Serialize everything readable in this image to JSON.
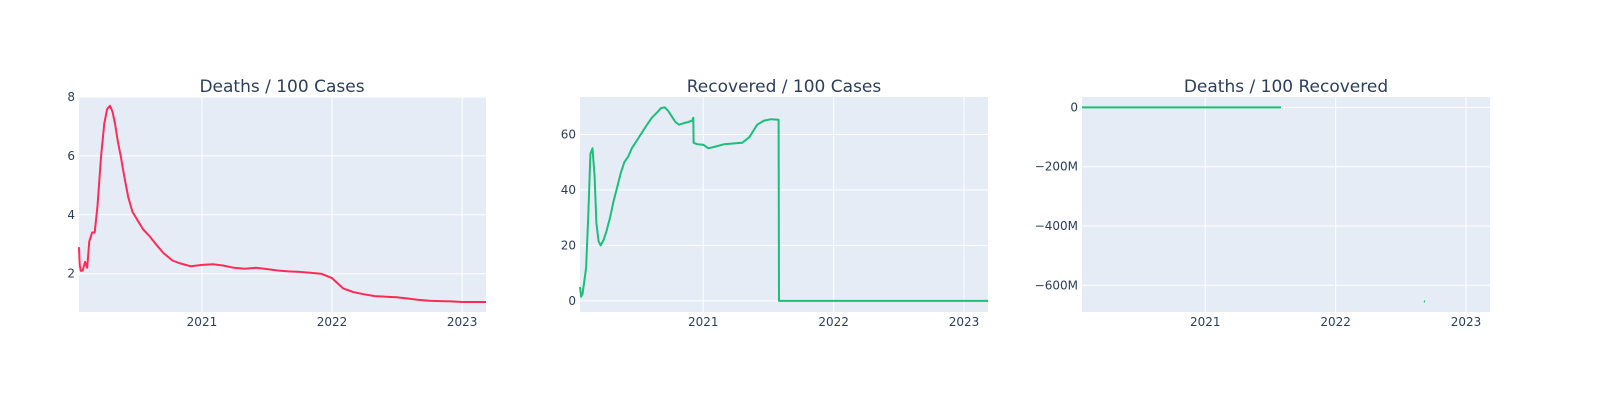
{
  "chart_data": [
    {
      "type": "line",
      "title": "Deaths / 100 Cases",
      "xlabel": "",
      "ylabel": "",
      "x_ticks": [
        "2021",
        "2022",
        "2023"
      ],
      "y_ticks": [
        "2",
        "4",
        "6",
        "8"
      ],
      "xlim": [
        "2020-01-22",
        "2023-03-09"
      ],
      "ylim": [
        0.7,
        8.0
      ],
      "grid": true,
      "color": "#ff2b56",
      "series": [
        {
          "x": [
            "2020-01-22",
            "2020-01-24",
            "2020-01-27",
            "2020-02-01",
            "2020-02-08",
            "2020-02-14",
            "2020-02-20",
            "2020-02-28",
            "2020-03-06",
            "2020-03-14",
            "2020-03-24",
            "2020-04-02",
            "2020-04-10",
            "2020-04-18",
            "2020-04-25",
            "2020-05-02",
            "2020-05-10",
            "2020-05-18",
            "2020-05-28",
            "2020-06-08",
            "2020-06-20",
            "2020-07-05",
            "2020-07-20",
            "2020-08-05",
            "2020-08-25",
            "2020-09-15",
            "2020-10-10",
            "2020-11-01",
            "2020-12-01",
            "2021-01-01",
            "2021-02-01",
            "2021-03-01",
            "2021-04-01",
            "2021-05-01",
            "2021-06-01",
            "2021-07-01",
            "2021-08-01",
            "2021-09-01",
            "2021-10-01",
            "2021-11-01",
            "2021-12-01",
            "2022-01-01",
            "2022-02-01",
            "2022-03-01",
            "2022-04-01",
            "2022-05-01",
            "2022-06-01",
            "2022-07-01",
            "2022-08-01",
            "2022-09-01",
            "2022-10-01",
            "2022-11-01",
            "2022-12-01",
            "2023-01-01",
            "2023-02-01",
            "2023-03-09"
          ],
          "y": [
            2.9,
            2.3,
            2.1,
            2.1,
            2.4,
            2.2,
            3.1,
            3.4,
            3.4,
            4.3,
            6.0,
            7.1,
            7.6,
            7.7,
            7.5,
            7.1,
            6.5,
            6.0,
            5.3,
            4.6,
            4.1,
            3.8,
            3.5,
            3.3,
            3.0,
            2.7,
            2.45,
            2.35,
            2.25,
            2.3,
            2.32,
            2.28,
            2.2,
            2.17,
            2.2,
            2.16,
            2.11,
            2.08,
            2.06,
            2.03,
            2.0,
            1.85,
            1.5,
            1.38,
            1.3,
            1.24,
            1.22,
            1.2,
            1.16,
            1.11,
            1.08,
            1.07,
            1.06,
            1.04,
            1.04,
            1.04
          ]
        }
      ]
    },
    {
      "type": "line",
      "title": "Recovered / 100 Cases",
      "xlabel": "",
      "ylabel": "",
      "x_ticks": [
        "2021",
        "2022",
        "2023"
      ],
      "y_ticks": [
        "0",
        "20",
        "40",
        "60"
      ],
      "xlim": [
        "2020-01-22",
        "2023-03-09"
      ],
      "ylim": [
        -4.0,
        73.5
      ],
      "grid": true,
      "color": "#1cbe78",
      "series": [
        {
          "x": [
            "2020-01-22",
            "2020-01-25",
            "2020-01-29",
            "2020-02-03",
            "2020-02-08",
            "2020-02-14",
            "2020-02-20",
            "2020-02-26",
            "2020-03-03",
            "2020-03-08",
            "2020-03-14",
            "2020-03-20",
            "2020-03-28",
            "2020-04-05",
            "2020-04-15",
            "2020-04-25",
            "2020-05-05",
            "2020-05-15",
            "2020-05-25",
            "2020-06-05",
            "2020-06-15",
            "2020-06-25",
            "2020-07-10",
            "2020-07-25",
            "2020-08-10",
            "2020-08-25",
            "2020-09-05",
            "2020-09-15",
            "2020-09-25",
            "2020-10-05",
            "2020-10-15",
            "2020-10-25",
            "2020-11-05",
            "2020-11-20",
            "2020-12-01",
            "2020-12-04",
            "2020-12-05",
            "2020-12-15",
            "2021-01-01",
            "2021-01-15",
            "2021-02-01",
            "2021-03-01",
            "2021-04-01",
            "2021-04-20",
            "2021-05-10",
            "2021-06-01",
            "2021-06-20",
            "2021-07-10",
            "2021-07-31",
            "2021-08-01",
            "2022-01-01",
            "2022-06-01",
            "2023-01-01",
            "2023-03-09"
          ],
          "y": [
            5.0,
            1.5,
            2.5,
            7.0,
            12.0,
            30.0,
            53.0,
            55.0,
            45.0,
            28.0,
            21.5,
            20.0,
            22.0,
            25.0,
            30.0,
            36.0,
            41.0,
            46.0,
            50.0,
            52.0,
            55.0,
            57.0,
            60.0,
            63.0,
            66.0,
            68.0,
            69.5,
            69.8,
            68.5,
            66.5,
            64.5,
            63.5,
            64.0,
            64.5,
            65.0,
            66.0,
            57.0,
            56.5,
            56.3,
            55.0,
            55.5,
            56.5,
            56.8,
            57.0,
            59.0,
            63.5,
            65.0,
            65.5,
            65.3,
            0.0,
            0.0,
            0.0,
            0.0,
            0.0
          ]
        }
      ]
    },
    {
      "type": "line",
      "title": "Deaths / 100 Recovered",
      "xlabel": "",
      "ylabel": "",
      "x_ticks": [
        "2021",
        "2022",
        "2023"
      ],
      "y_ticks": [
        "0",
        "−200M",
        "−400M",
        "−600M"
      ],
      "xlim": [
        "2020-01-22",
        "2023-03-09"
      ],
      "ylim": [
        -690000000,
        35000000
      ],
      "grid": true,
      "color": "#1cbe78",
      "series": [
        {
          "x": [
            "2020-01-22",
            "2020-06-01",
            "2021-01-01",
            "2021-06-01",
            "2021-08-01"
          ],
          "y": [
            0,
            0,
            0,
            0,
            0
          ]
        },
        {
          "x": [
            "2022-09-05",
            "2022-09-08"
          ],
          "y": [
            -654000000,
            -655000000
          ]
        }
      ]
    }
  ]
}
